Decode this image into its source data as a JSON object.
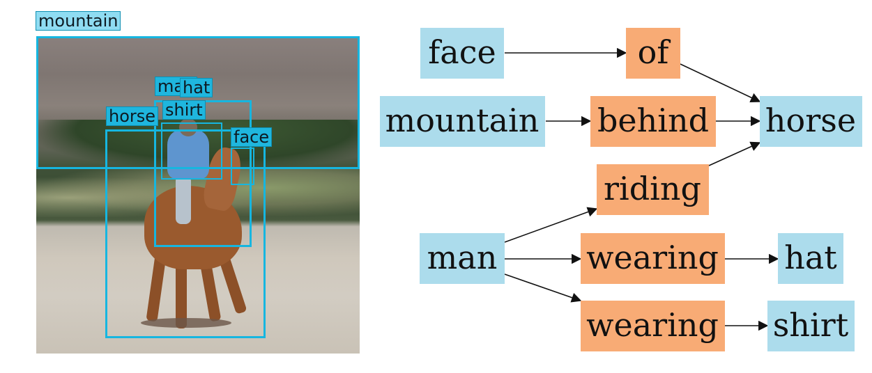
{
  "image_labels": {
    "mountain": "mountain",
    "man": "man",
    "hat": "hat",
    "shirt": "shirt",
    "horse": "horse",
    "face": "face"
  },
  "graph": {
    "objects": {
      "face": "face",
      "mountain": "mountain",
      "man": "man",
      "horse": "horse",
      "hat": "hat",
      "shirt": "shirt"
    },
    "relations": {
      "of": "of",
      "behind": "behind",
      "riding": "riding",
      "wearing_hat": "wearing",
      "wearing_shirt": "wearing"
    },
    "object_color": "#acdcec",
    "relation_color": "#f8ab75",
    "edge_color": "#111111"
  },
  "colors": {
    "bbox": "#16b6e0",
    "tag": "#1fb6de"
  }
}
